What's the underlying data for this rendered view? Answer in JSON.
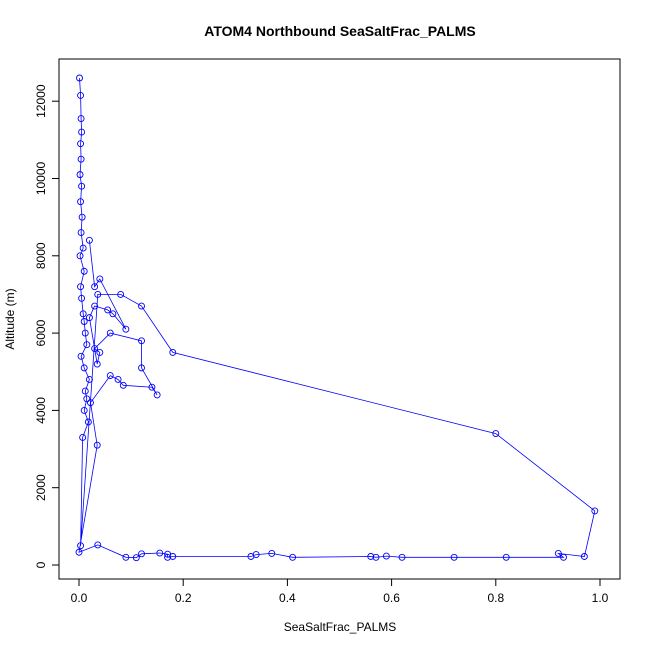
{
  "chart_data": {
    "type": "line",
    "title": "ATOM4 Northbound SeaSaltFrac_PALMS",
    "xlabel": "SeaSaltFrac_PALMS",
    "ylabel": "Altitude (m)",
    "xlim": [
      0.0,
      1.0
    ],
    "ylim": [
      0,
      12600
    ],
    "x_ticks": [
      0.0,
      0.2,
      0.4,
      0.6,
      0.8,
      1.0
    ],
    "x_tick_labels": [
      "0.0",
      "0.2",
      "0.4",
      "0.6",
      "0.8",
      "1.0"
    ],
    "y_ticks": [
      0,
      2000,
      4000,
      6000,
      8000,
      10000,
      12000
    ],
    "y_tick_labels": [
      "0",
      "2000",
      "4000",
      "6000",
      "8000",
      "10000",
      "12000"
    ],
    "grid": false,
    "legend": "none",
    "color": "#0000ff",
    "marker": "open-circle",
    "series": [
      {
        "values": [
          [
            0.001,
            12600
          ],
          [
            0.003,
            12150
          ],
          [
            0.004,
            11550
          ],
          [
            0.005,
            11200
          ],
          [
            0.003,
            10900
          ],
          [
            0.004,
            10500
          ],
          [
            0.002,
            10100
          ],
          [
            0.005,
            9800
          ],
          [
            0.003,
            9400
          ],
          [
            0.006,
            9000
          ],
          [
            0.004,
            8600
          ],
          [
            0.008,
            8200
          ],
          [
            0.002,
            8000
          ],
          [
            0.01,
            7600
          ],
          [
            0.003,
            7200
          ],
          [
            0.005,
            6900
          ],
          [
            0.008,
            6500
          ],
          [
            0.01,
            6300
          ],
          [
            0.012,
            6000
          ],
          [
            0.015,
            5700
          ],
          [
            0.004,
            5400
          ],
          [
            0.01,
            5100
          ],
          [
            0.02,
            4800
          ],
          [
            0.012,
            4500
          ],
          [
            0.015,
            4300
          ],
          [
            0.01,
            4000
          ],
          [
            0.018,
            3700
          ],
          [
            0.007,
            3300
          ],
          [
            0.003,
            500
          ],
          [
            0.036,
            7000
          ],
          [
            0.08,
            7000
          ],
          [
            0.12,
            6700
          ],
          [
            0.18,
            5500
          ],
          [
            0.8,
            3400
          ],
          [
            0.99,
            1400
          ],
          [
            0.97,
            220
          ],
          [
            0.92,
            300
          ],
          [
            0.93,
            200
          ],
          [
            0.82,
            200
          ],
          [
            0.72,
            200
          ],
          [
            0.62,
            200
          ],
          [
            0.59,
            230
          ],
          [
            0.57,
            200
          ],
          [
            0.56,
            220
          ],
          [
            0.41,
            200
          ],
          [
            0.37,
            300
          ],
          [
            0.34,
            270
          ],
          [
            0.33,
            220
          ],
          [
            0.18,
            220
          ],
          [
            0.17,
            200
          ],
          [
            0.17,
            280
          ],
          [
            0.155,
            310
          ],
          [
            0.12,
            290
          ],
          [
            0.11,
            190
          ],
          [
            0.09,
            200
          ],
          [
            0.036,
            520
          ],
          [
            0.0,
            330
          ],
          [
            0.035,
            3100
          ],
          [
            0.022,
            4200
          ],
          [
            0.06,
            4900
          ],
          [
            0.075,
            4800
          ],
          [
            0.085,
            4650
          ],
          [
            0.14,
            4600
          ],
          [
            0.15,
            4400
          ],
          [
            0.12,
            5100
          ],
          [
            0.12,
            5800
          ],
          [
            0.06,
            6000
          ],
          [
            0.03,
            5600
          ],
          [
            0.04,
            5500
          ],
          [
            0.035,
            5200
          ],
          [
            0.02,
            6400
          ],
          [
            0.03,
            6700
          ],
          [
            0.055,
            6600
          ],
          [
            0.065,
            6500
          ],
          [
            0.09,
            6100
          ],
          [
            0.04,
            7400
          ],
          [
            0.03,
            7200
          ],
          [
            0.02,
            8400
          ]
        ]
      }
    ]
  }
}
